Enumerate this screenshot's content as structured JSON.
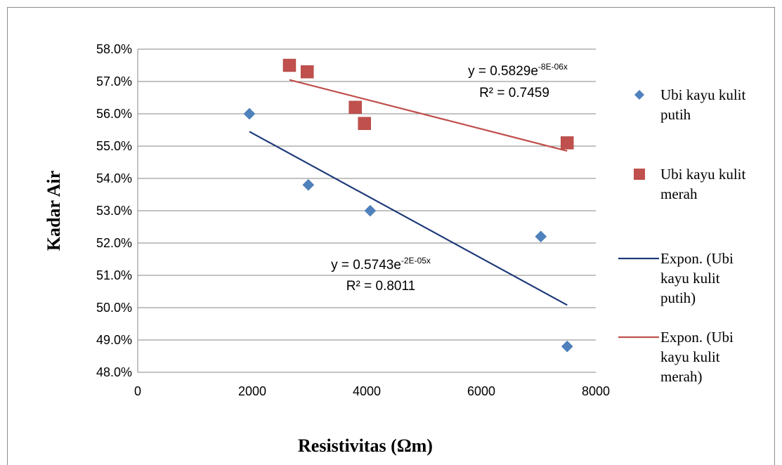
{
  "chart_data": {
    "type": "scatter",
    "xlabel": "Resistivitas (Ωm)",
    "ylabel": "Kadar Air",
    "xlim": [
      0,
      8000
    ],
    "ylim": [
      0.48,
      0.58
    ],
    "x_ticks": [
      "0",
      "2000",
      "4000",
      "6000",
      "8000"
    ],
    "y_ticks": [
      "48.0%",
      "49.0%",
      "50.0%",
      "51.0%",
      "52.0%",
      "53.0%",
      "54.0%",
      "55.0%",
      "56.0%",
      "57.0%",
      "58.0%"
    ],
    "grid": "horizontal",
    "legend_position": "right",
    "series": [
      {
        "name": "Ubi kayu kulit putih",
        "legend_lines": [
          "Ubi kayu kulit",
          "putih"
        ],
        "marker": "diamond",
        "color": "#4f81bd",
        "points": [
          {
            "x": 1950,
            "y": 0.56
          },
          {
            "x": 2980,
            "y": 0.538
          },
          {
            "x": 4060,
            "y": 0.53
          },
          {
            "x": 7040,
            "y": 0.522
          },
          {
            "x": 7500,
            "y": 0.488
          }
        ]
      },
      {
        "name": "Ubi kayu kulit merah",
        "legend_lines": [
          "Ubi kayu kulit",
          "merah"
        ],
        "marker": "square",
        "color": "#c0504d",
        "points": [
          {
            "x": 2650,
            "y": 0.575
          },
          {
            "x": 2960,
            "y": 0.573
          },
          {
            "x": 3800,
            "y": 0.562
          },
          {
            "x": 3960,
            "y": 0.557
          },
          {
            "x": 7500,
            "y": 0.551
          }
        ]
      }
    ],
    "trendlines": [
      {
        "name": "Expon. (Ubi kayu kulit putih)",
        "legend_lines": [
          "Expon. (Ubi",
          "kayu kulit",
          "putih)"
        ],
        "color": "#1f3c7a",
        "x_range": [
          1950,
          7500
        ],
        "y_range": [
          0.5545,
          0.5008
        ],
        "equation_prefix": "y = 0.5743e",
        "equation_exponent": "-2E-05x",
        "r2": "R² = 0.8011"
      },
      {
        "name": "Expon. (Ubi kayu kulit merah)",
        "legend_lines": [
          "Expon. (Ubi",
          "kayu kulit",
          "merah)"
        ],
        "color": "#c0504d",
        "x_range": [
          2650,
          7500
        ],
        "y_range": [
          0.5705,
          0.5485
        ],
        "equation_prefix": "y = 0.5829e",
        "equation_exponent": "-8E-06x",
        "r2": "R² = 0.7459"
      }
    ]
  }
}
